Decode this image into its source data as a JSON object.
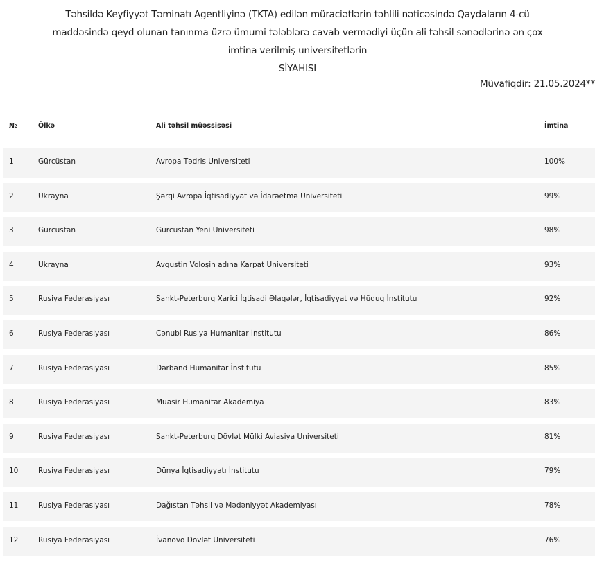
{
  "title_lines": [
    "Təhsildə Keyfiyyət Təminatı Agentliyinə (TKTA) edilən müraciətlərin təhlili nəticəsində Qaydaların 4-cü",
    "maddəsində qeyd olunan tanınma üzrə ümumi tələblərə cavab vermədiyi üçün ali təhsil sənədlərinə ən çox",
    "imtina verilmiş universitetlərin",
    "SİYAHISI"
  ],
  "date_label": "Müvafiqdir: 21.05.2024**",
  "table": {
    "headers": [
      "№",
      "Ölkə",
      "Ali təhsil müəssisəsi",
      "İmtina"
    ],
    "rows": [
      [
        "1",
        "Gürcüstan",
        "Avropa Tədris Universiteti",
        "100%"
      ],
      [
        "2",
        "Ukrayna",
        "Şərqi Avropa İqtisadiyyat və İdarəetmə Universiteti",
        "99%"
      ],
      [
        "3",
        "Gürcüstan",
        "Gürcüstan Yeni Universiteti",
        "98%"
      ],
      [
        "4",
        "Ukrayna",
        "Avqustin Voloşin adına Karpat Universiteti",
        "93%"
      ],
      [
        "5",
        "Rusiya Federasiyası",
        "Sankt-Peterburq Xarici İqtisadi Əlaqələr, İqtisadiyyat və Hüquq İnstitutu",
        "92%"
      ],
      [
        "6",
        "Rusiya Federasiyası",
        "Cənubi Rusiya Humanitar İnstitutu",
        "86%"
      ],
      [
        "7",
        "Rusiya Federasiyası",
        "Dərbənd Humanitar İnstitutu",
        "85%"
      ],
      [
        "8",
        "Rusiya Federasiyası",
        "Müasir Humanitar Akademiya",
        "83%"
      ],
      [
        "9",
        "Rusiya Federasiyası",
        "Sankt-Peterburq Dövlət Mülki Aviasiya Universiteti",
        "81%"
      ],
      [
        "10",
        "Rusiya Federasiyası",
        "Dünya İqtisadiyyatı İnstitutu",
        "79%"
      ],
      [
        "11",
        "Rusiya Federasiyası",
        "Dağıstan Təhsil və Mədəniyyət Akademiyası",
        "78%"
      ],
      [
        "12",
        "Rusiya Federasiyası",
        "İvanovo Dövlət Universiteti",
        "76%"
      ]
    ]
  },
  "colors": {
    "row_background": "#f4f4f4",
    "text": "#222222"
  }
}
